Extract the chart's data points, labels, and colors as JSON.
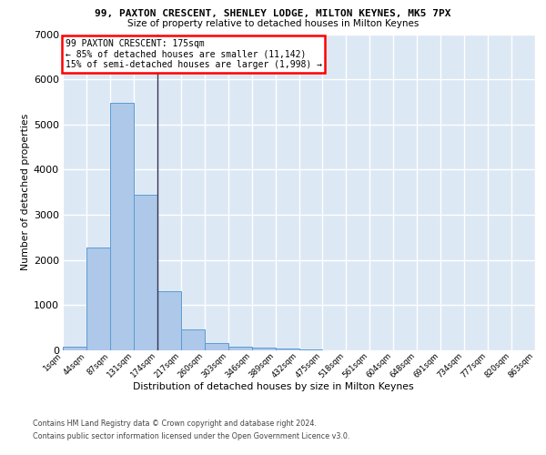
{
  "title": "99, PAXTON CRESCENT, SHENLEY LODGE, MILTON KEYNES, MK5 7PX",
  "subtitle": "Size of property relative to detached houses in Milton Keynes",
  "xlabel": "Distribution of detached houses by size in Milton Keynes",
  "ylabel": "Number of detached properties",
  "bar_values": [
    75,
    2270,
    5470,
    3450,
    1310,
    470,
    155,
    90,
    70,
    40,
    15,
    8,
    5,
    3,
    2,
    2,
    1,
    1,
    1,
    0
  ],
  "bar_labels": [
    "1sqm",
    "44sqm",
    "87sqm",
    "131sqm",
    "174sqm",
    "217sqm",
    "260sqm",
    "303sqm",
    "346sqm",
    "389sqm",
    "432sqm",
    "475sqm",
    "518sqm",
    "561sqm",
    "604sqm",
    "648sqm",
    "691sqm",
    "734sqm",
    "777sqm",
    "820sqm",
    "863sqm"
  ],
  "bar_color": "#adc8e8",
  "bar_edge_color": "#5b9bd5",
  "background_color": "#dde8f5",
  "grid_color": "#ffffff",
  "marker_bar_index": 4,
  "marker_line_color": "#333355",
  "ylim": [
    0,
    7000
  ],
  "yticks": [
    0,
    1000,
    2000,
    3000,
    4000,
    5000,
    6000,
    7000
  ],
  "annotation_line1": "99 PAXTON CRESCENT: 175sqm",
  "annotation_line2": "← 85% of detached houses are smaller (11,142)",
  "annotation_line3": "15% of semi-detached houses are larger (1,998) →",
  "footer_line1": "Contains HM Land Registry data © Crown copyright and database right 2024.",
  "footer_line2": "Contains public sector information licensed under the Open Government Licence v3.0."
}
